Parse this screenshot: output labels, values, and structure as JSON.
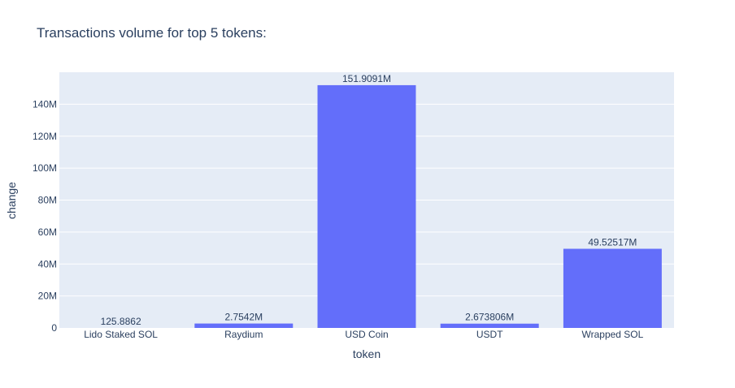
{
  "chart_data": {
    "type": "bar",
    "title": "Transactions volume for top 5 tokens:",
    "xlabel": "token",
    "ylabel": "change",
    "categories": [
      "Lido Staked SOL",
      "Raydium",
      "USD Coin",
      "USDT",
      "Wrapped SOL"
    ],
    "values": [
      125.8862,
      2754200,
      151909100,
      2673806,
      49525170
    ],
    "data_labels": [
      "125.8862",
      "2.7542M",
      "151.9091M",
      "2.673806M",
      "49.52517M"
    ],
    "ylim": [
      0,
      160000000
    ],
    "yticks": [
      0,
      20000000,
      40000000,
      60000000,
      80000000,
      100000000,
      120000000,
      140000000
    ],
    "ytick_labels": [
      "0",
      "20M",
      "40M",
      "60M",
      "80M",
      "100M",
      "120M",
      "140M"
    ],
    "grid": true,
    "legend": "none"
  },
  "colors": {
    "bar": "#636efa",
    "plot_bg": "#e5ecf6",
    "grid": "#ffffff",
    "text": "#2a3f5f"
  }
}
